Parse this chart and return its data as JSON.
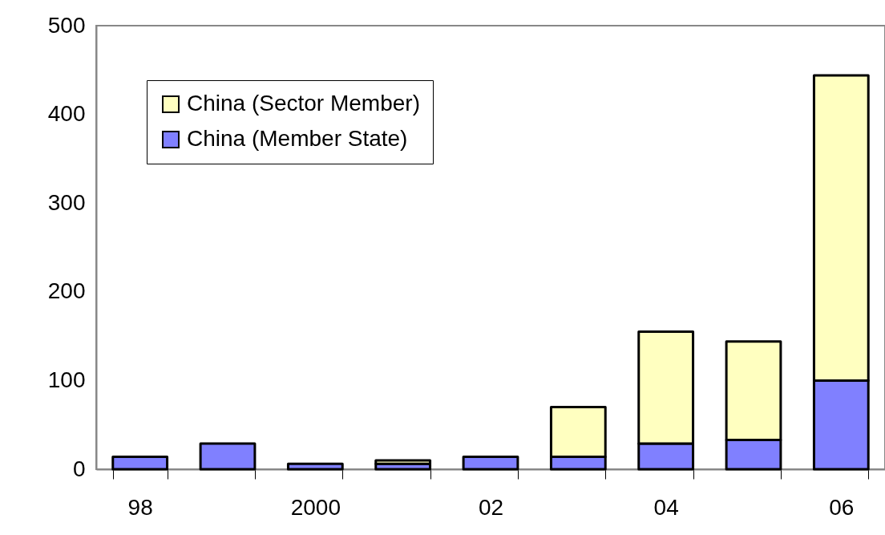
{
  "chart_data": {
    "type": "bar",
    "stacked": true,
    "categories": [
      "98",
      null,
      "2000",
      null,
      "02",
      null,
      "04",
      null,
      "06"
    ],
    "series": [
      {
        "name": "China (Member State)",
        "color": "#8080ff",
        "values": [
          14,
          29,
          6,
          6,
          14,
          14,
          29,
          33,
          100
        ]
      },
      {
        "name": "China (Sector Member)",
        "color": "#ffffc0",
        "values": [
          null,
          null,
          null,
          4,
          null,
          56,
          126,
          111,
          344
        ]
      }
    ],
    "ylim": [
      0,
      500
    ],
    "yticks": [
      0,
      100,
      200,
      300,
      400,
      500
    ],
    "grid": false,
    "legend": "top left"
  }
}
